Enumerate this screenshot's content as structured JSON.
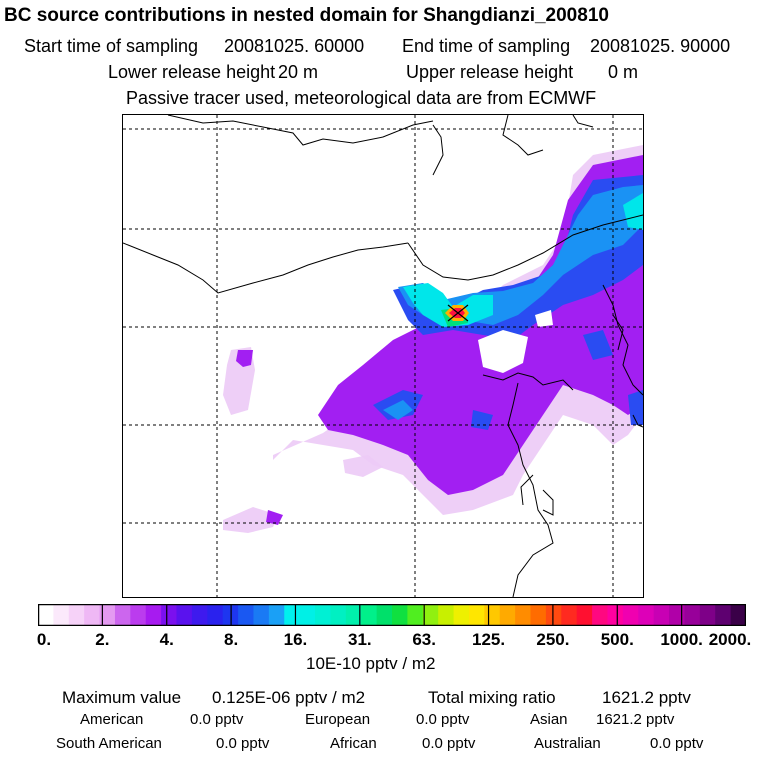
{
  "title": "BC  source contributions in nested domain for Shangdianzi_200810",
  "sampling": {
    "start_label": "Start time of sampling",
    "start_value": "20081025. 60000",
    "end_label": "End time of sampling",
    "end_value": "20081025. 90000"
  },
  "release": {
    "lower_label": "Lower release height",
    "lower_value": "20 m",
    "upper_label": "Upper release height",
    "upper_value": "0 m"
  },
  "tracer_note": "Passive tracer used, meteorological data are from ECMWF",
  "colorbar": {
    "unit": "10E-10 pptv / m2",
    "labels": [
      "0.",
      "2.",
      "4.",
      "8.",
      "16.",
      "31.",
      "63.",
      "125.",
      "250.",
      "500.",
      "1000.",
      "2000."
    ],
    "colors": [
      "#ffffff",
      "#fbe9fb",
      "#f6d2f8",
      "#efb8f5",
      "#e49af1",
      "#cc66ee",
      "#bb3cee",
      "#a71bf0",
      "#7b10ee",
      "#5a12ee",
      "#3e1aee",
      "#2a22ee",
      "#1e36f0",
      "#1a58f2",
      "#1a7af4",
      "#1aa0f6",
      "#00f0ee",
      "#00f0e6",
      "#00f0d4",
      "#00f0c2",
      "#00f0ac",
      "#00f08a",
      "#00e06a",
      "#10e040",
      "#50ee20",
      "#90f010",
      "#c8f000",
      "#eef000",
      "#ffe600",
      "#ffc800",
      "#ffaa00",
      "#ff8c00",
      "#ff6c00",
      "#ff4a10",
      "#ff2a20",
      "#ff1030",
      "#ff0880",
      "#ff00a0",
      "#f000b0",
      "#dd00b8",
      "#c800b4",
      "#b000a8",
      "#98009a",
      "#7e0088",
      "#5e0070",
      "#3a0048"
    ]
  },
  "stats": {
    "max_label": "Maximum value",
    "max_value": "0.125E-06 pptv / m2",
    "total_label": "Total mixing ratio",
    "total_value": "1621.2 pptv",
    "regions": [
      {
        "name": "American",
        "value": "0.0 pptv"
      },
      {
        "name": "European",
        "value": "0.0 pptv"
      },
      {
        "name": "Asian",
        "value": "1621.2 pptv"
      },
      {
        "name": "South American",
        "value": "0.0 pptv"
      },
      {
        "name": "African",
        "value": "0.0 pptv"
      },
      {
        "name": "Australian",
        "value": "0.0 pptv"
      }
    ]
  },
  "map_colors": {
    "light_violet": "#eccaf6",
    "violet": "#a21ff2",
    "purple": "#9b30f0",
    "blue": "#2a4cf2",
    "light_blue": "#1a92f4",
    "cyan": "#00e6ea",
    "green": "#00e07c",
    "red_source": "#ff1040",
    "orange_source": "#ffb000",
    "coastline": "#000000",
    "gridline": "#000000"
  }
}
